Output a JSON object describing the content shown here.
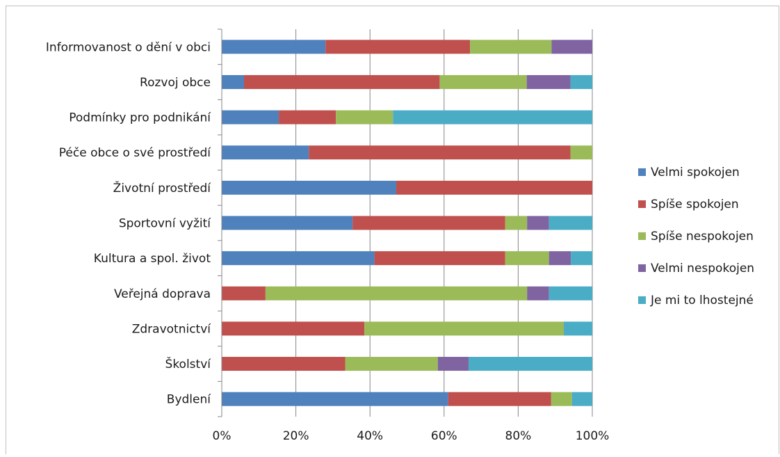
{
  "chart_data": {
    "type": "bar",
    "orientation": "horizontal",
    "stacked": "percent",
    "categories": [
      "Informovanost o dění v obci",
      "Rozvoj obce",
      "Podmínky pro podnikání",
      "Péče obce o své prostředí",
      "Životní prostředí",
      "Sportovní vyžití",
      "Kultura a spol. život",
      "Veřejná doprava",
      "Zdravotnictví",
      "Školství",
      "Bydlení"
    ],
    "series": [
      {
        "name": "Velmi spokojen",
        "color": "#4f81bd",
        "values": [
          28,
          6,
          15.4,
          23.5,
          47.1,
          35.3,
          41.2,
          0,
          0,
          0,
          61.1
        ]
      },
      {
        "name": "Spíše spokojen",
        "color": "#c0504d",
        "values": [
          39,
          52.8,
          15.4,
          70.6,
          52.9,
          41.2,
          35.3,
          11.8,
          38.5,
          33.3,
          27.8
        ]
      },
      {
        "name": "Spíše nespokojen",
        "color": "#9bbb59",
        "values": [
          22,
          23.5,
          15.4,
          5.9,
          0,
          5.9,
          11.8,
          70.6,
          53.8,
          25,
          5.6
        ]
      },
      {
        "name": "Velmi nespokojen",
        "color": "#8064a2",
        "values": [
          11,
          11.8,
          0,
          0,
          0,
          5.9,
          5.9,
          5.9,
          0,
          8.3,
          0
        ]
      },
      {
        "name": "Je mi to lhostejné",
        "color": "#4bacc6",
        "values": [
          0,
          5.9,
          53.8,
          0,
          0,
          11.7,
          5.8,
          11.7,
          7.7,
          33.4,
          5.5
        ]
      }
    ],
    "x_ticks": [
      "0%",
      "20%",
      "40%",
      "60%",
      "80%",
      "100%"
    ],
    "xlim": [
      0,
      100
    ],
    "grid": true,
    "legend_position": "right"
  }
}
